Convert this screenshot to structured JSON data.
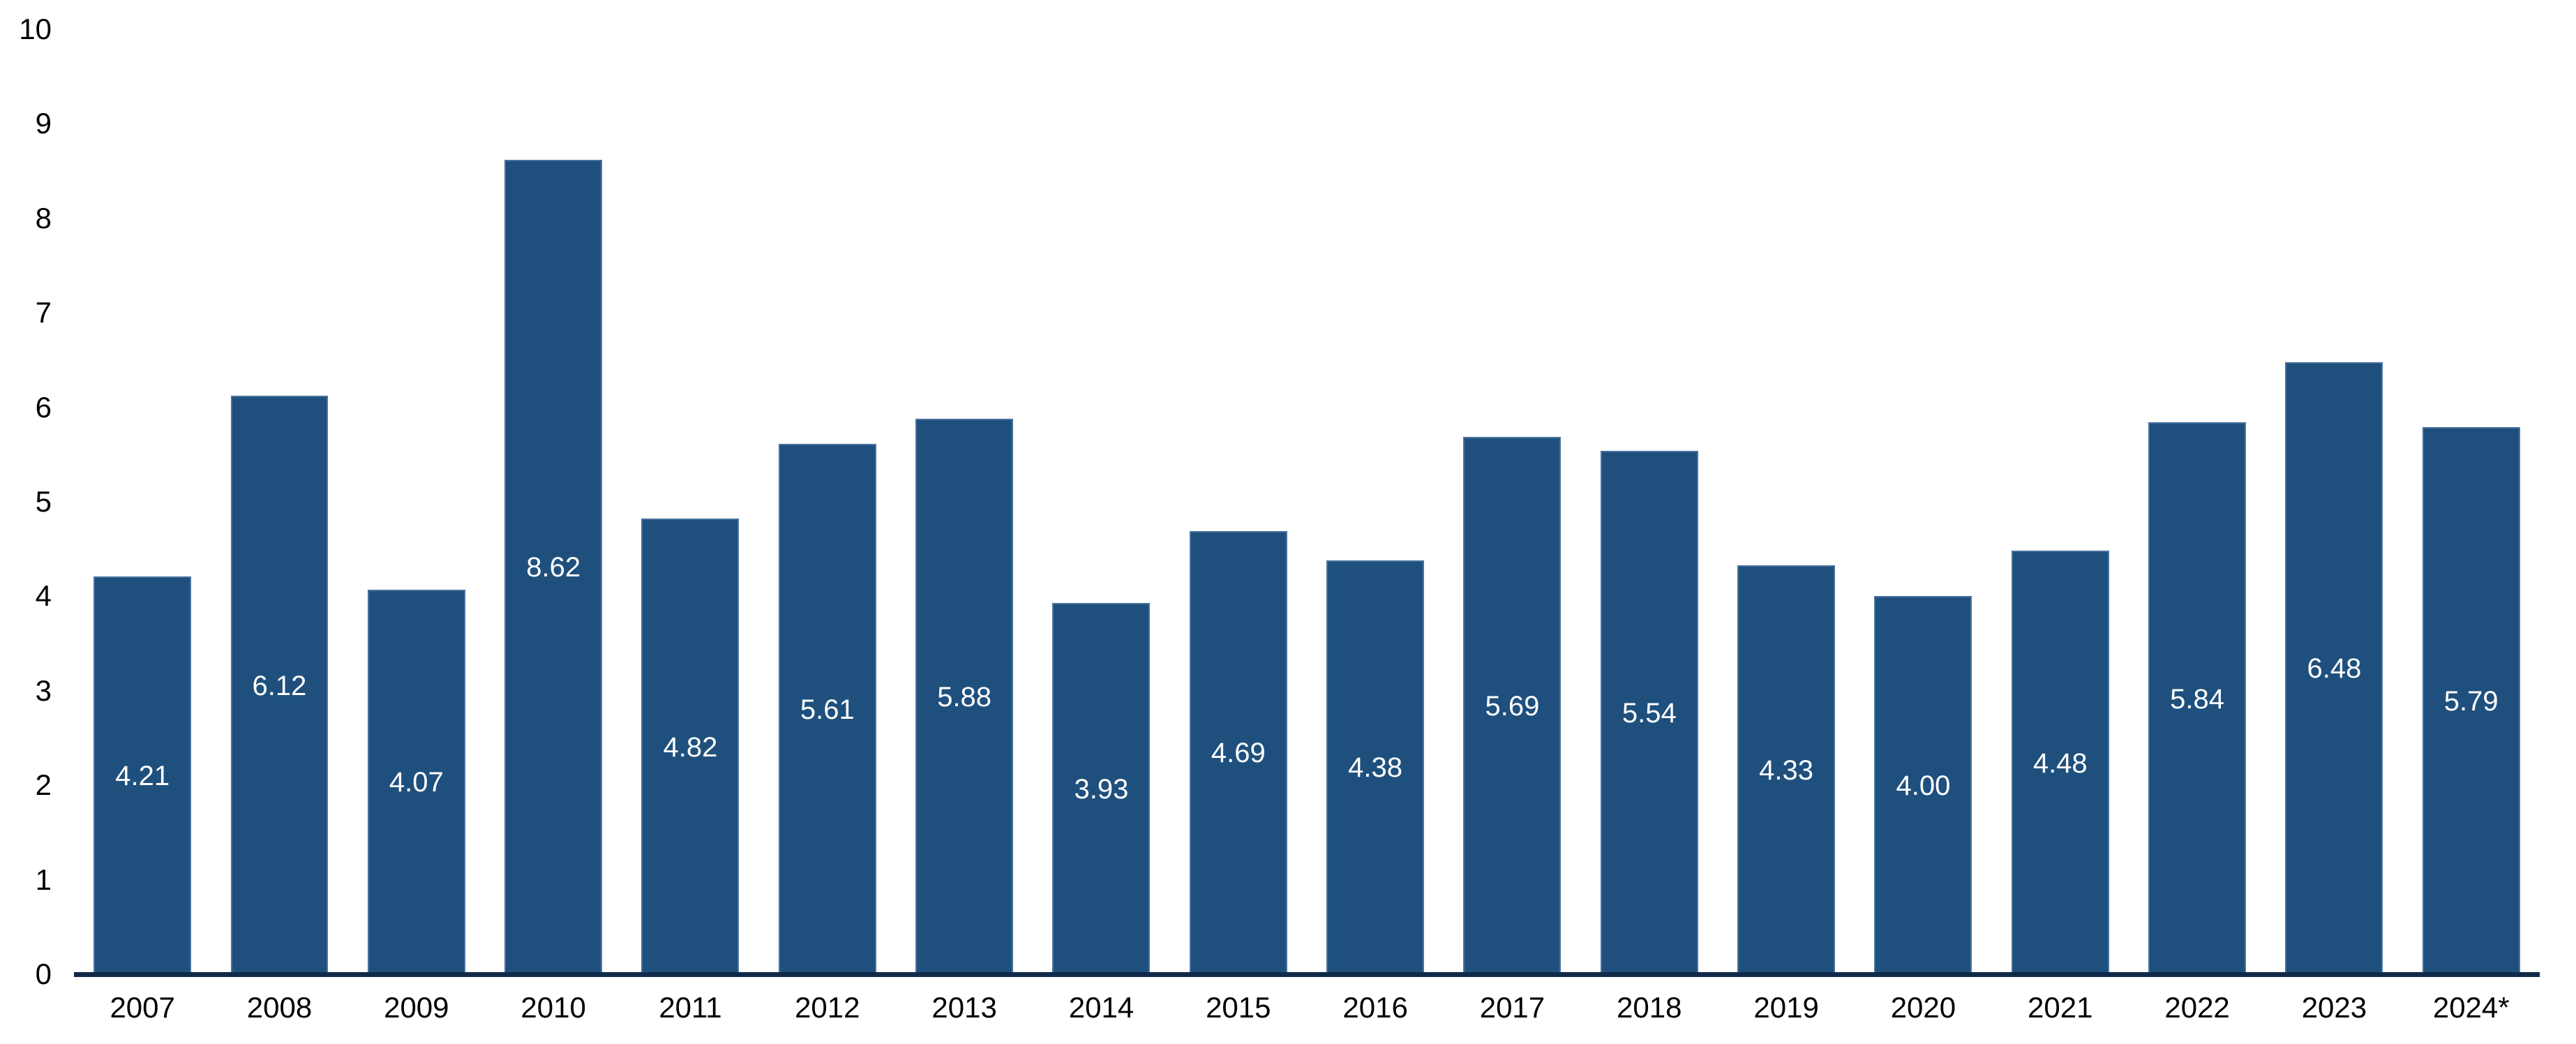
{
  "chart_data": {
    "type": "bar",
    "title": "",
    "xlabel": "",
    "ylabel": "",
    "categories": [
      "2007",
      "2008",
      "2009",
      "2010",
      "2011",
      "2012",
      "2013",
      "2014",
      "2015",
      "2016",
      "2017",
      "2018",
      "2019",
      "2020",
      "2021",
      "2022",
      "2023",
      "2024*"
    ],
    "values": [
      4.21,
      6.12,
      4.07,
      8.62,
      4.82,
      5.61,
      5.88,
      3.93,
      4.69,
      4.38,
      5.69,
      5.54,
      4.33,
      4.0,
      4.48,
      5.84,
      6.48,
      5.79
    ],
    "value_labels": [
      "4.21",
      "6.12",
      "4.07",
      "8.62",
      "4.82",
      "5.61",
      "5.88",
      "3.93",
      "4.69",
      "4.38",
      "5.69",
      "5.54",
      "4.33",
      "4.00",
      "4.48",
      "5.84",
      "6.48",
      "5.79"
    ],
    "ylim": [
      0,
      10
    ],
    "yticks": [
      "0",
      "1",
      "2",
      "3",
      "4",
      "5",
      "6",
      "7",
      "8",
      "9",
      "10"
    ],
    "grid": false,
    "legend": null,
    "value_label_position": "inside-center",
    "colors": {
      "bar_fill": "#1F507D",
      "bar_border": "#4A739F",
      "axis_line": "#102A4A",
      "tick_text": "#000000",
      "bar_label_text": "#FFFFFF",
      "background": "#FFFFFF"
    }
  }
}
